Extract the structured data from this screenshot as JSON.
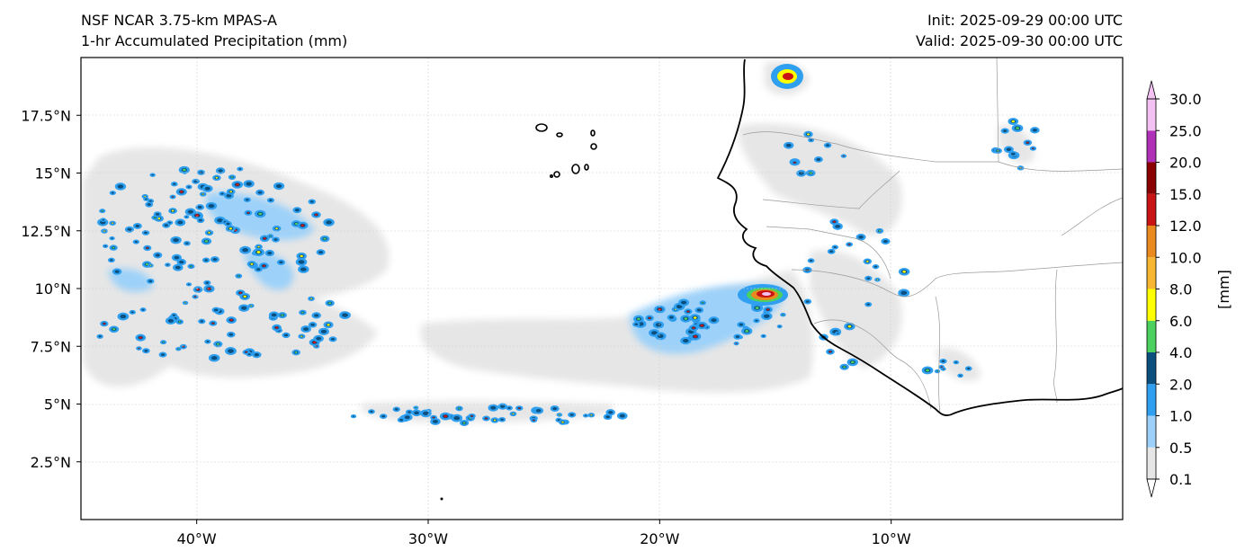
{
  "header": {
    "model": "NSF NCAR 3.75-km MPAS-A",
    "field": "1-hr Accumulated Precipitation (mm)",
    "init": "Init: 2025-09-29 00:00 UTC",
    "valid": "Valid: 2025-09-30 00:00 UTC"
  },
  "map": {
    "lon_range": [
      -45,
      0
    ],
    "lat_range": [
      0,
      20
    ],
    "x_ticks": [
      {
        "lon": -40,
        "label": "40°W"
      },
      {
        "lon": -30,
        "label": "30°W"
      },
      {
        "lon": -20,
        "label": "20°W"
      },
      {
        "lon": -10,
        "label": "10°W"
      }
    ],
    "y_ticks": [
      {
        "lat": 2.5,
        "label": "2.5°N"
      },
      {
        "lat": 5,
        "label": "5°N"
      },
      {
        "lat": 7.5,
        "label": "7.5°N"
      },
      {
        "lat": 10,
        "label": "10°N"
      },
      {
        "lat": 12.5,
        "label": "12.5°N"
      },
      {
        "lat": 15,
        "label": "15°N"
      },
      {
        "lat": 17.5,
        "label": "17.5°N"
      }
    ],
    "grid": true,
    "coastline_color": "#000000",
    "border_color": "#999999"
  },
  "colorbar": {
    "unit_label": "[mm]",
    "extend": "both",
    "levels": [
      "0.1",
      "0.5",
      "1.0",
      "2.0",
      "4.0",
      "6.0",
      "8.0",
      "10.0",
      "12.0",
      "15.0",
      "20.0",
      "25.0",
      "30.0"
    ],
    "colors": [
      "#e6e6e6",
      "#9dd1f9",
      "#2f9ff0",
      "#0a4f7e",
      "#4bd15d",
      "#ffff00",
      "#f7b733",
      "#e88a1f",
      "#c81414",
      "#8b0000",
      "#b030b8",
      "#f4c2f2"
    ],
    "under_color": "#ffffff",
    "over_color": "#f4c2f2"
  }
}
